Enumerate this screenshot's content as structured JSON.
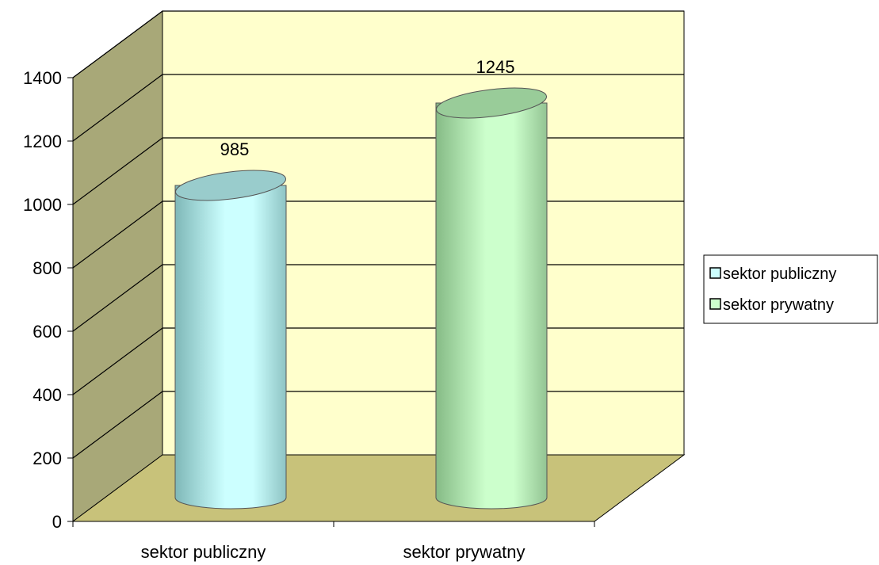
{
  "chart_data": {
    "type": "bar",
    "style": "3d-cylinder",
    "categories": [
      "sektor publiczny",
      "sektor prywatny"
    ],
    "values": [
      985,
      1245
    ],
    "series": [
      {
        "name": "sektor publiczny",
        "value": 985,
        "color": "#ccffff"
      },
      {
        "name": "sektor prywatny",
        "value": 1245,
        "color": "#ccffcc"
      }
    ],
    "ylim": [
      0,
      1400
    ],
    "yticks": [
      "0",
      "200",
      "400",
      "600",
      "800",
      "1000",
      "1200",
      "1400"
    ],
    "data_labels": [
      "985",
      "1245"
    ],
    "grid": true,
    "legend_position": "right",
    "colors": {
      "back_wall": "#ffffcc",
      "side_wall": "#a8a878",
      "floor": "#c8c27a",
      "grid": "#000000"
    }
  }
}
